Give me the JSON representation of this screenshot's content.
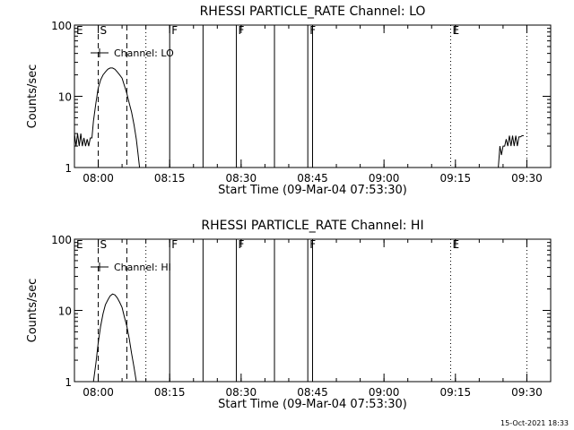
{
  "footer": "15-Oct-2021 18:33",
  "chart_data": [
    {
      "type": "line",
      "title": "RHESSI PARTICLE_RATE Channel: LO",
      "xlabel": "Start Time (09-Mar-04 07:53:30)",
      "ylabel": "Counts/sec",
      "yscale": "log",
      "ylim": [
        1,
        100
      ],
      "xlim": [
        "07:55",
        "09:35"
      ],
      "x_ticks": [
        "08:00",
        "08:15",
        "08:30",
        "08:45",
        "09:00",
        "09:15",
        "09:30"
      ],
      "y_ticks": [
        "1",
        "10",
        "100"
      ],
      "legend": {
        "label": "Channel: LO",
        "placement": "top-left"
      },
      "markers": [
        {
          "label": "E",
          "time": "07:55",
          "style": "none"
        },
        {
          "label": "S",
          "time": "08:00",
          "style": "dashed"
        },
        {
          "label": "",
          "time": "08:06",
          "style": "dashed"
        },
        {
          "label": "",
          "time": "08:10",
          "style": "dotted"
        },
        {
          "label": "F",
          "time": "08:15",
          "style": "solid"
        },
        {
          "label": "",
          "time": "08:22",
          "style": "solid"
        },
        {
          "label": "F",
          "time": "08:29",
          "style": "solid"
        },
        {
          "label": "",
          "time": "08:37",
          "style": "solid"
        },
        {
          "label": "F",
          "time": "08:44",
          "style": "solid"
        },
        {
          "label": "",
          "time": "08:45",
          "style": "solid"
        },
        {
          "label": "E",
          "time": "09:14",
          "style": "dotted"
        },
        {
          "label": "",
          "time": "09:30",
          "style": "dotted"
        }
      ],
      "segments": [
        {
          "times": [
            "07:55:00",
            "07:55:20",
            "07:55:40",
            "07:56:00",
            "07:56:20",
            "07:56:40",
            "07:57:00",
            "07:57:20",
            "07:57:40",
            "07:58:00",
            "07:58:20",
            "07:58:40",
            "07:59:00",
            "07:59:30",
            "08:00:00",
            "08:00:30",
            "08:01:00",
            "08:01:30",
            "08:02:00",
            "08:02:30",
            "08:03:00",
            "08:03:30",
            "08:04:00",
            "08:04:30",
            "08:05:00",
            "08:05:30",
            "08:06:00",
            "08:06:30",
            "08:07:00",
            "08:07:30",
            "08:08:00",
            "08:08:20",
            "08:08:40"
          ],
          "values": [
            3,
            2,
            3,
            2,
            3,
            2,
            2.6,
            2,
            2.5,
            2,
            2.6,
            2.6,
            4.5,
            8,
            13,
            17,
            20,
            22,
            24,
            25,
            25,
            24,
            22,
            20,
            18,
            14,
            11,
            8,
            6,
            4,
            2.5,
            1.6,
            1
          ]
        },
        {
          "times": [
            "09:24:00",
            "09:24:20",
            "09:24:40",
            "09:25:00",
            "09:25:20",
            "09:25:40",
            "09:26:00",
            "09:26:20",
            "09:26:40",
            "09:27:00",
            "09:27:20",
            "09:27:40",
            "09:28:00",
            "09:28:20",
            "09:28:40",
            "09:29:00",
            "09:29:20"
          ],
          "values": [
            1,
            2,
            1.5,
            2,
            2,
            2.5,
            2,
            2.8,
            2,
            2.8,
            2,
            2.8,
            2,
            2.7,
            2.7,
            2.8,
            2.8
          ]
        }
      ]
    },
    {
      "type": "line",
      "title": "RHESSI PARTICLE_RATE Channel: HI",
      "xlabel": "Start Time (09-Mar-04 07:53:30)",
      "ylabel": "Counts/sec",
      "yscale": "log",
      "ylim": [
        1,
        100
      ],
      "xlim": [
        "07:55",
        "09:35"
      ],
      "x_ticks": [
        "08:00",
        "08:15",
        "08:30",
        "08:45",
        "09:00",
        "09:15",
        "09:30"
      ],
      "y_ticks": [
        "1",
        "10",
        "100"
      ],
      "legend": {
        "label": "Channel: HI",
        "placement": "top-left"
      },
      "markers": [
        {
          "label": "E",
          "time": "07:55",
          "style": "none"
        },
        {
          "label": "S",
          "time": "08:00",
          "style": "dashed"
        },
        {
          "label": "",
          "time": "08:06",
          "style": "dashed"
        },
        {
          "label": "",
          "time": "08:10",
          "style": "dotted"
        },
        {
          "label": "F",
          "time": "08:15",
          "style": "solid"
        },
        {
          "label": "",
          "time": "08:22",
          "style": "solid"
        },
        {
          "label": "F",
          "time": "08:29",
          "style": "solid"
        },
        {
          "label": "",
          "time": "08:37",
          "style": "solid"
        },
        {
          "label": "F",
          "time": "08:44",
          "style": "solid"
        },
        {
          "label": "",
          "time": "08:45",
          "style": "solid"
        },
        {
          "label": "E",
          "time": "09:14",
          "style": "dotted"
        },
        {
          "label": "",
          "time": "09:30",
          "style": "dotted"
        }
      ],
      "segments": [
        {
          "times": [
            "07:59:00",
            "07:59:30",
            "08:00:00",
            "08:00:30",
            "08:01:00",
            "08:01:30",
            "08:02:00",
            "08:02:30",
            "08:03:00",
            "08:03:30",
            "08:04:00",
            "08:04:30",
            "08:05:00",
            "08:05:30",
            "08:06:00",
            "08:06:30",
            "08:07:00",
            "08:07:30",
            "08:08:00"
          ],
          "values": [
            1,
            1.8,
            3.5,
            6,
            9,
            12,
            14,
            16,
            17,
            16.5,
            15,
            13,
            11,
            8,
            6,
            4,
            2.5,
            1.6,
            1
          ]
        }
      ]
    }
  ]
}
